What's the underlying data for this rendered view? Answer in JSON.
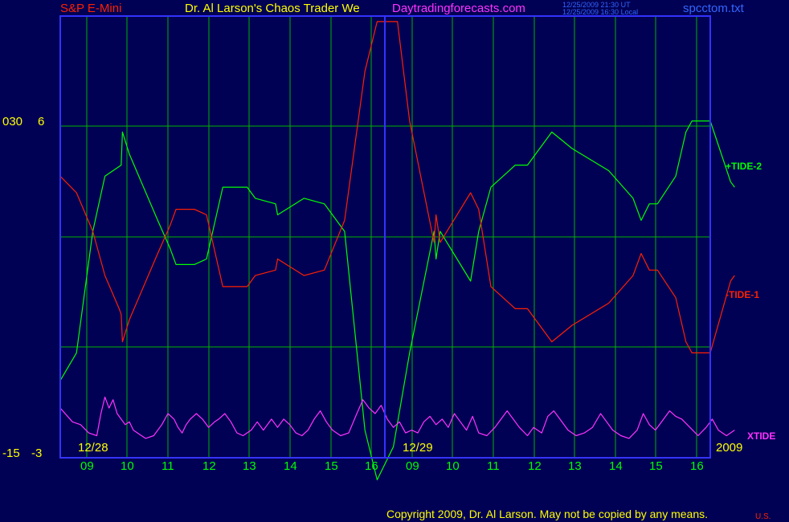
{
  "header": {
    "instrument": "S&P E-Mini",
    "title": "Dr. Al Larson's Chaos Trader We",
    "site": "Daytradingforecasts.com",
    "time_ut": "12/25/2009 21:30 UT",
    "time_local": "12/25/2009 16:30 Local",
    "filename": "spcctom.txt"
  },
  "footer": {
    "copyright": "Copyright 2009, Dr. Al Larson. May not be copied by any means.",
    "corner_mark": "U.S."
  },
  "colors": {
    "background": "#000054",
    "frame": "#3333ff",
    "grid": "#00b400",
    "tide2": "#00ff00",
    "tide1": "#ff2000",
    "xtide": "#ff33ff",
    "date_labels": "#ffff00",
    "hour_labels": "#00ff00"
  },
  "chart_data": {
    "type": "line",
    "y_axis_labels": [
      {
        "left": "030",
        "right": "6"
      },
      {
        "left": "-15",
        "right": "-3"
      }
    ],
    "x_hour_labels": [
      "09",
      "10",
      "11",
      "12",
      "13",
      "14",
      "15",
      "16",
      "09",
      "10",
      "11",
      "12",
      "13",
      "14",
      "15",
      "16"
    ],
    "x_date_labels": [
      "12/28",
      "12/29",
      "2009"
    ],
    "grid": true,
    "legend_placement": "right",
    "series": [
      {
        "name": "+TIDE-2",
        "color": "#00ff00",
        "points": [
          [
            0,
            -2.6
          ],
          [
            0.4,
            -2.1
          ],
          [
            0.8,
            0.1
          ],
          [
            1.1,
            1.1
          ],
          [
            1.5,
            1.3
          ],
          [
            1.53,
            1.9
          ],
          [
            1.7,
            1.5
          ],
          [
            2.4,
            0.3
          ],
          [
            2.7,
            -0.2
          ],
          [
            2.85,
            -0.5
          ],
          [
            3.3,
            -0.5
          ],
          [
            3.6,
            -0.4
          ],
          [
            4,
            0.9
          ],
          [
            4.6,
            0.9
          ],
          [
            4.8,
            0.7
          ],
          [
            5.3,
            0.6
          ],
          [
            5.35,
            0.4
          ],
          [
            6,
            0.7
          ],
          [
            6.5,
            0.6
          ],
          [
            7,
            0.1
          ],
          [
            7.5,
            -3.5
          ],
          [
            7.8,
            -4.4
          ],
          [
            8.2,
            -3.8
          ],
          [
            8.6,
            -2.1
          ],
          [
            9.2,
            0.1
          ],
          [
            9.25,
            -0.4
          ],
          [
            9.35,
            0.1
          ],
          [
            10.1,
            -0.8
          ],
          [
            10.3,
            0.1
          ],
          [
            10.6,
            0.9
          ],
          [
            11.2,
            1.3
          ],
          [
            11.5,
            1.3
          ],
          [
            12.1,
            1.9
          ],
          [
            12.6,
            1.6
          ],
          [
            13.5,
            1.2
          ],
          [
            14.1,
            0.7
          ],
          [
            14.3,
            0.3
          ],
          [
            14.5,
            0.6
          ],
          [
            14.7,
            0.6
          ],
          [
            15.15,
            1.1
          ],
          [
            15.4,
            1.9
          ],
          [
            15.55,
            2.1
          ],
          [
            16,
            2.1
          ],
          [
            16.5,
            1.0
          ],
          [
            16.6,
            0.9
          ]
        ]
      },
      {
        "name": "-TIDE-1",
        "color": "#ff2000",
        "points": [
          [
            0,
            1.1
          ],
          [
            0.4,
            0.8
          ],
          [
            0.8,
            0.1
          ],
          [
            1.1,
            -0.7
          ],
          [
            1.45,
            -1.3
          ],
          [
            1.5,
            -1.4
          ],
          [
            1.53,
            -1.9
          ],
          [
            1.7,
            -1.5
          ],
          [
            2.4,
            -0.3
          ],
          [
            2.7,
            0.2
          ],
          [
            2.85,
            0.5
          ],
          [
            3.3,
            0.5
          ],
          [
            3.6,
            0.4
          ],
          [
            4,
            -0.9
          ],
          [
            4.6,
            -0.9
          ],
          [
            4.8,
            -0.7
          ],
          [
            5.3,
            -0.6
          ],
          [
            5.35,
            -0.4
          ],
          [
            6,
            -0.7
          ],
          [
            6.5,
            -0.6
          ],
          [
            7,
            0.3
          ],
          [
            7.5,
            3.0
          ],
          [
            7.8,
            3.9
          ],
          [
            8.3,
            3.9
          ],
          [
            8.6,
            2.1
          ],
          [
            9.2,
            -0.1
          ],
          [
            9.25,
            0.4
          ],
          [
            9.35,
            -0.1
          ],
          [
            10.1,
            0.8
          ],
          [
            10.3,
            0.5
          ],
          [
            10.6,
            -0.9
          ],
          [
            11.2,
            -1.3
          ],
          [
            11.5,
            -1.3
          ],
          [
            12.1,
            -1.9
          ],
          [
            12.6,
            -1.6
          ],
          [
            13.5,
            -1.2
          ],
          [
            14.1,
            -0.7
          ],
          [
            14.3,
            -0.3
          ],
          [
            14.5,
            -0.6
          ],
          [
            14.7,
            -0.6
          ],
          [
            15.15,
            -1.1
          ],
          [
            15.4,
            -1.9
          ],
          [
            15.55,
            -2.1
          ],
          [
            16,
            -2.1
          ],
          [
            16.5,
            -0.8
          ],
          [
            16.6,
            -0.7
          ]
        ]
      },
      {
        "name": "XTIDE",
        "color": "#ff33ff",
        "points": [
          [
            0,
            -3.1
          ],
          [
            0.3,
            -3.35
          ],
          [
            0.5,
            -3.4
          ],
          [
            0.7,
            -3.55
          ],
          [
            0.9,
            -3.6
          ],
          [
            1.0,
            -3.2
          ],
          [
            1.1,
            -2.9
          ],
          [
            1.2,
            -3.1
          ],
          [
            1.3,
            -2.95
          ],
          [
            1.4,
            -3.2
          ],
          [
            1.5,
            -3.3
          ],
          [
            1.6,
            -3.4
          ],
          [
            1.7,
            -3.35
          ],
          [
            1.8,
            -3.5
          ],
          [
            2.0,
            -3.6
          ],
          [
            2.1,
            -3.65
          ],
          [
            2.3,
            -3.6
          ],
          [
            2.5,
            -3.4
          ],
          [
            2.65,
            -3.2
          ],
          [
            2.8,
            -3.3
          ],
          [
            2.9,
            -3.45
          ],
          [
            3.0,
            -3.55
          ],
          [
            3.1,
            -3.4
          ],
          [
            3.2,
            -3.3
          ],
          [
            3.35,
            -3.2
          ],
          [
            3.5,
            -3.3
          ],
          [
            3.65,
            -3.45
          ],
          [
            3.8,
            -3.35
          ],
          [
            3.9,
            -3.3
          ],
          [
            4.05,
            -3.2
          ],
          [
            4.2,
            -3.35
          ],
          [
            4.35,
            -3.55
          ],
          [
            4.5,
            -3.6
          ],
          [
            4.7,
            -3.5
          ],
          [
            4.85,
            -3.35
          ],
          [
            5.0,
            -3.5
          ],
          [
            5.2,
            -3.3
          ],
          [
            5.35,
            -3.45
          ],
          [
            5.5,
            -3.3
          ],
          [
            5.65,
            -3.4
          ],
          [
            5.8,
            -3.55
          ],
          [
            5.95,
            -3.6
          ],
          [
            6.1,
            -3.5
          ],
          [
            6.25,
            -3.3
          ],
          [
            6.4,
            -3.15
          ],
          [
            6.55,
            -3.35
          ],
          [
            6.7,
            -3.5
          ],
          [
            6.9,
            -3.6
          ],
          [
            7.1,
            -3.55
          ],
          [
            7.3,
            -3.2
          ],
          [
            7.45,
            -2.95
          ],
          [
            7.6,
            -3.1
          ],
          [
            7.75,
            -3.2
          ],
          [
            7.9,
            -3.05
          ],
          [
            8.05,
            -3.3
          ],
          [
            8.2,
            -3.45
          ],
          [
            8.35,
            -3.35
          ],
          [
            8.5,
            -3.55
          ],
          [
            8.65,
            -3.5
          ],
          [
            8.8,
            -3.55
          ],
          [
            8.95,
            -3.35
          ],
          [
            9.1,
            -3.25
          ],
          [
            9.25,
            -3.4
          ],
          [
            9.4,
            -3.3
          ],
          [
            9.55,
            -3.45
          ],
          [
            9.7,
            -3.2
          ],
          [
            9.85,
            -3.35
          ],
          [
            10.0,
            -3.5
          ],
          [
            10.15,
            -3.25
          ],
          [
            10.3,
            -3.55
          ],
          [
            10.5,
            -3.6
          ],
          [
            10.7,
            -3.45
          ],
          [
            10.85,
            -3.3
          ],
          [
            11.0,
            -3.15
          ],
          [
            11.15,
            -3.3
          ],
          [
            11.3,
            -3.45
          ],
          [
            11.5,
            -3.6
          ],
          [
            11.65,
            -3.45
          ],
          [
            11.85,
            -3.55
          ],
          [
            12.0,
            -3.25
          ],
          [
            12.15,
            -3.15
          ],
          [
            12.3,
            -3.3
          ],
          [
            12.5,
            -3.5
          ],
          [
            12.7,
            -3.6
          ],
          [
            12.9,
            -3.55
          ],
          [
            13.1,
            -3.45
          ],
          [
            13.3,
            -3.2
          ],
          [
            13.45,
            -3.35
          ],
          [
            13.6,
            -3.5
          ],
          [
            13.8,
            -3.6
          ],
          [
            14.0,
            -3.65
          ],
          [
            14.2,
            -3.5
          ],
          [
            14.35,
            -3.2
          ],
          [
            14.5,
            -3.4
          ],
          [
            14.65,
            -3.5
          ],
          [
            14.85,
            -3.3
          ],
          [
            15.0,
            -3.15
          ],
          [
            15.15,
            -3.25
          ],
          [
            15.3,
            -3.3
          ],
          [
            15.5,
            -3.45
          ],
          [
            15.7,
            -3.6
          ],
          [
            15.9,
            -3.45
          ],
          [
            16.05,
            -3.3
          ],
          [
            16.2,
            -3.5
          ],
          [
            16.4,
            -3.6
          ],
          [
            16.6,
            -3.5
          ]
        ]
      }
    ]
  }
}
